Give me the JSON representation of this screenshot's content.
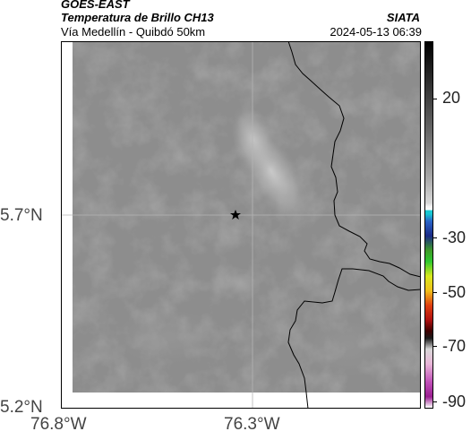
{
  "header": {
    "satellite": "GOES-EAST",
    "product": "Temperatura de Brillo CH13",
    "organization": "SIATA",
    "location": "Vía Medellín - Quibdó 50km",
    "timestamp": "2024-05-13 06:39"
  },
  "axes": {
    "lat_ticks": [
      "5.7°N",
      "5.2°N"
    ],
    "lon_ticks": [
      "76.8°W",
      "76.3°W"
    ]
  },
  "colorbar": {
    "tick_labels": [
      "20",
      "-30",
      "-50",
      "-70",
      "-90"
    ]
  },
  "marker": {
    "icon": "star-marker-icon"
  },
  "colors": {
    "cloud_gray": "#8f8f8f",
    "border_line": "#000000",
    "grid_line": "#b4b4b4"
  }
}
